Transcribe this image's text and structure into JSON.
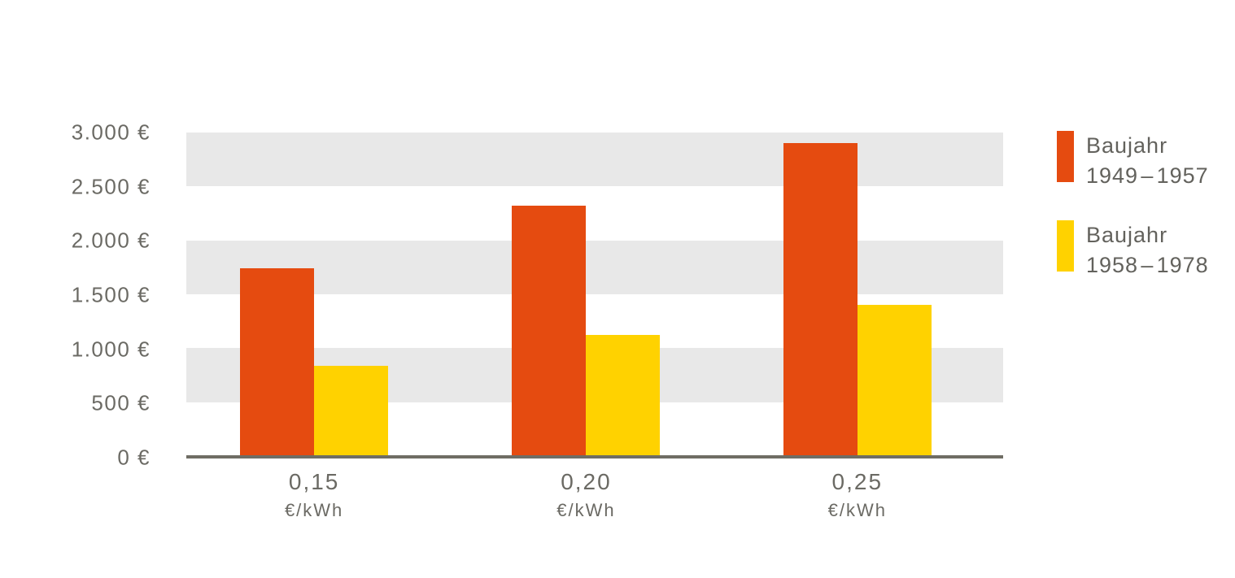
{
  "chart_data": {
    "type": "bar",
    "title": "",
    "xlabel": "",
    "ylabel": "",
    "categories": [
      {
        "price": "0,15",
        "unit": "€/kWh"
      },
      {
        "price": "0,20",
        "unit": "€/kWh"
      },
      {
        "price": "0,25",
        "unit": "€/kWh"
      }
    ],
    "series": [
      {
        "name": "Baujahr 1949–1957",
        "color": "#e54b10",
        "values": [
          1740,
          2320,
          2900
        ]
      },
      {
        "name": "Baujahr 1958–1978",
        "color": "#ffd200",
        "values": [
          840,
          1120,
          1400
        ]
      }
    ],
    "ylim": [
      0,
      3000
    ],
    "ytick_step": 500,
    "yticks": [
      "3.000 €",
      "2.500 €",
      "2.000 €",
      "1.500 €",
      "1.000 €",
      "500 €",
      "0 €"
    ],
    "grid_bands": [
      [
        2500,
        3000
      ],
      [
        1500,
        2000
      ],
      [
        500,
        1000
      ]
    ],
    "band_color": "#e8e8e8",
    "axis_color": "#6f6d64",
    "legend_position": "right",
    "grid": "horizontal-bands"
  },
  "legend": {
    "entries": [
      {
        "line1": "Baujahr",
        "line2": "1949 – 1957",
        "color": "#e54b10"
      },
      {
        "line1": "Baujahr",
        "line2": "1958 – 1978",
        "color": "#ffd200"
      }
    ]
  }
}
